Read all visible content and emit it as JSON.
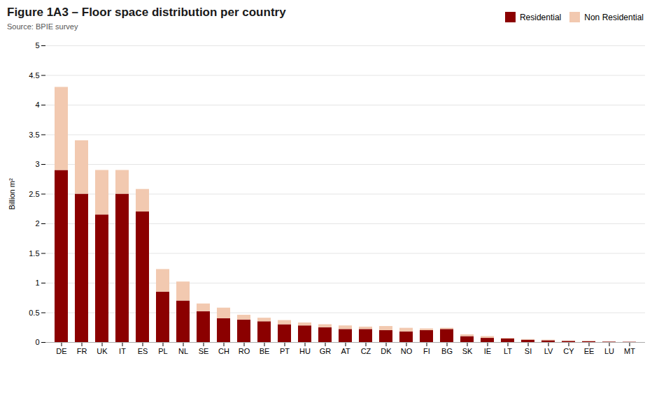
{
  "chart_data": {
    "type": "bar",
    "title": "Figure 1A3 – Floor space distribution per country",
    "subtitle": "Source: BPIE survey",
    "ylabel": "Billion m²",
    "categories": [
      "DE",
      "FR",
      "UK",
      "IT",
      "ES",
      "PL",
      "NL",
      "SE",
      "CH",
      "RO",
      "BE",
      "PT",
      "HU",
      "GR",
      "AT",
      "CZ",
      "DK",
      "NO",
      "FI",
      "BG",
      "SK",
      "IE",
      "LT",
      "SI",
      "LV",
      "CY",
      "EE",
      "LU",
      "MT"
    ],
    "series": [
      {
        "name": "Residential",
        "color": "#8B0000",
        "values": [
          2.9,
          2.5,
          2.15,
          2.5,
          2.2,
          0.85,
          0.7,
          0.52,
          0.4,
          0.38,
          0.35,
          0.3,
          0.28,
          0.25,
          0.22,
          0.22,
          0.2,
          0.18,
          0.2,
          0.22,
          0.1,
          0.07,
          0.06,
          0.04,
          0.03,
          0.02,
          0.015,
          0.008,
          0.005
        ]
      },
      {
        "name": "Non Residential",
        "color": "#F2C9B0",
        "values": [
          1.4,
          0.9,
          0.75,
          0.4,
          0.38,
          0.38,
          0.32,
          0.13,
          0.18,
          0.08,
          0.06,
          0.07,
          0.05,
          0.05,
          0.06,
          0.04,
          0.07,
          0.06,
          0.03,
          0.02,
          0.03,
          0.03,
          0.01,
          0.01,
          0.01,
          0.005,
          0.005,
          0.002,
          0.002
        ]
      }
    ],
    "stacked": true,
    "ylim": [
      0,
      5
    ],
    "yticks": [
      0,
      0.5,
      1,
      1.5,
      2,
      2.5,
      3,
      3.5,
      4,
      4.5,
      5
    ],
    "grid": true,
    "legend": "upper right"
  }
}
